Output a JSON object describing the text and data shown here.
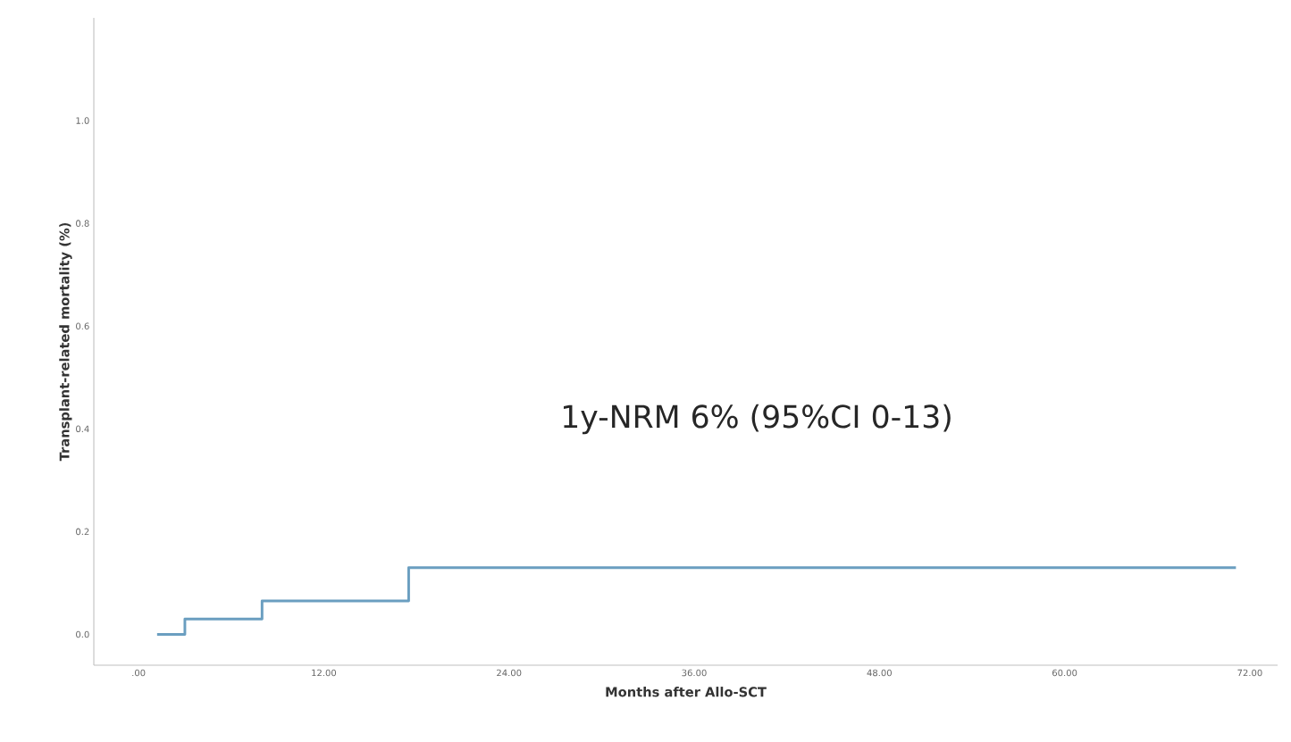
{
  "chart_data": {
    "type": "step",
    "xlabel": "Months after Allo-SCT",
    "ylabel": "Transplant-related mortality (%)",
    "annotations": [
      "1y-NRM 6% (95%CI 0-13)"
    ],
    "series": [
      {
        "color": "#6a9ec0",
        "x": [
          1.2,
          3.0,
          8.0,
          17.5,
          71.1
        ],
        "values": [
          0,
          0.03,
          0.065,
          0.13,
          0.13
        ]
      }
    ],
    "xlim": [
      -2.9,
      73.8
    ],
    "ylim": [
      -0.06,
      1.2
    ],
    "xticks": [
      {
        "value": 0,
        "label": ".00"
      },
      {
        "value": 12,
        "label": "12.00"
      },
      {
        "value": 24,
        "label": "24.00"
      },
      {
        "value": 36,
        "label": "36.00"
      },
      {
        "value": 48,
        "label": "48.00"
      },
      {
        "value": 60,
        "label": "60.00"
      },
      {
        "value": 72,
        "label": "72.00"
      }
    ],
    "yticks": [
      {
        "value": 0,
        "label": "0.0"
      },
      {
        "value": 0.2,
        "label": "0.2"
      },
      {
        "value": 0.4,
        "label": "0.4"
      },
      {
        "value": 0.6,
        "label": "0.6"
      },
      {
        "value": 0.8,
        "label": "0.8"
      },
      {
        "value": 1.0,
        "label": "1.0"
      }
    ]
  }
}
